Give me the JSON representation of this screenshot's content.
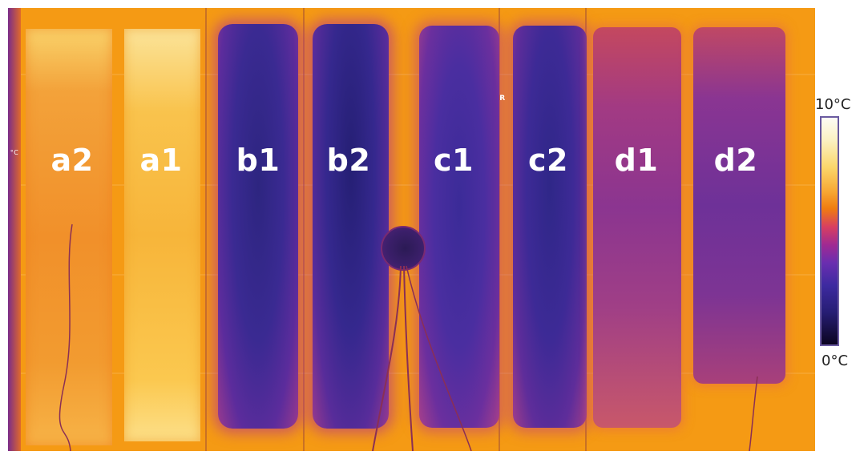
{
  "image": {
    "description_kind": "thermal infrared mosaic of eight test strips",
    "strip_labels": [
      "a2",
      "a1",
      "b1",
      "b2",
      "c1",
      "c2",
      "d1",
      "d2"
    ],
    "left_edge_unit_fragment": "°C",
    "probe_marker_letter": "R"
  },
  "colorbar": {
    "max_label": "10°C",
    "min_label": "0°C",
    "colormap": "iron / inferno",
    "colors": [
      "#fdfcf5",
      "#fbd66a",
      "#f07c10",
      "#a02a92",
      "#3d2aa0",
      "#0b0420"
    ]
  }
}
